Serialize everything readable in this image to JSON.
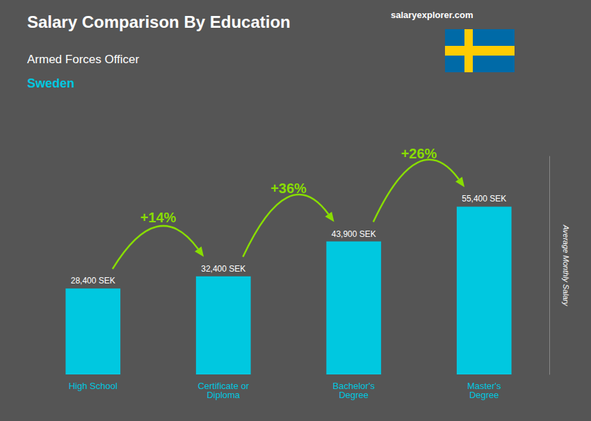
{
  "chart_data": {
    "type": "bar",
    "title": "Salary Comparison By Education",
    "subtitle": "Armed Forces Officer",
    "annotations": [
      {
        "text": "Sweden"
      },
      {
        "text": "salaryexplorer.com"
      },
      {
        "from": "High School",
        "to": "Certificate or\nDiploma",
        "text": "+14%"
      },
      {
        "from": "Certificate or\nDiploma",
        "to": "Bachelor's\nDegree",
        "text": "+36%"
      },
      {
        "from": "Bachelor's\nDegree",
        "to": "Master's\nDegree",
        "text": "+26%"
      }
    ],
    "categories": [
      "High School",
      "Certificate or\nDiploma",
      "Bachelor's\nDegree",
      "Master's\nDegree"
    ],
    "values": [
      28400,
      32400,
      43900,
      55400
    ],
    "value_labels": [
      "28,400 SEK",
      "32,400 SEK",
      "43,900 SEK",
      "55,400 SEK"
    ],
    "data_labels": true,
    "color": "#00c8e0",
    "ylabel": "Average Monthly Salary",
    "ylim": [
      0,
      72000
    ],
    "tick_labels": "x",
    "grid": false
  }
}
